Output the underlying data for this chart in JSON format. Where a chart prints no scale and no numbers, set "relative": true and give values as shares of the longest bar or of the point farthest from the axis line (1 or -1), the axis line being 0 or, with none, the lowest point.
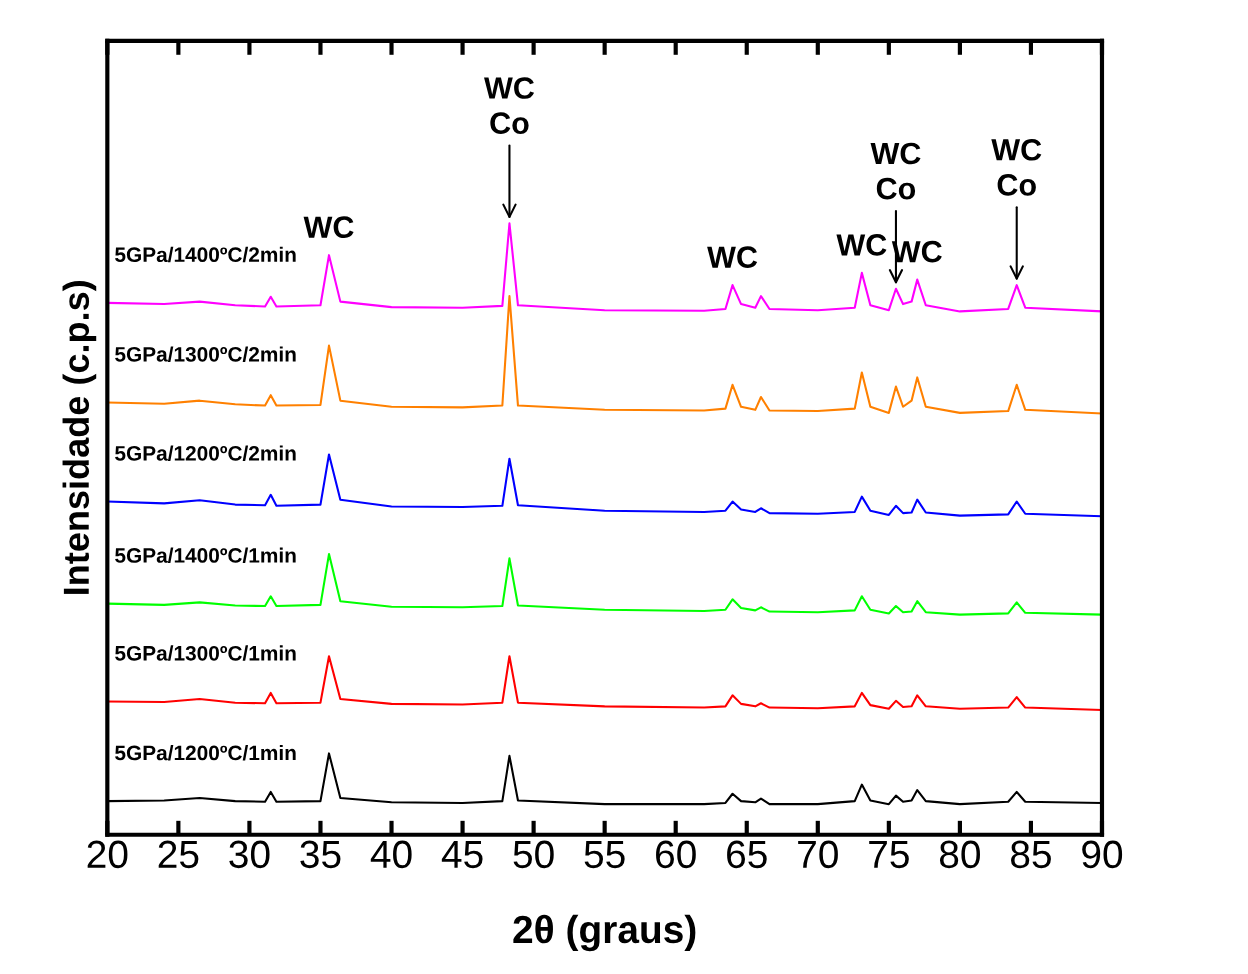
{
  "chart_data": {
    "type": "line",
    "xlabel": "2θ (graus)",
    "ylabel": "Intensidade (c.p.s)",
    "relative": true,
    "legend": false,
    "grid": false,
    "marker": "none",
    "line_style": "solid",
    "xlim": [
      20,
      90
    ],
    "xticks": [
      20,
      25,
      30,
      35,
      40,
      45,
      50,
      55,
      60,
      65,
      70,
      75,
      80,
      85,
      90
    ],
    "x": [
      20,
      24,
      26.5,
      29,
      31.1,
      31.5,
      31.9,
      35,
      35.6,
      36.4,
      40,
      45,
      47.8,
      48.3,
      48.9,
      55,
      62,
      63.5,
      64,
      64.6,
      65.6,
      66,
      66.6,
      70,
      72.6,
      73.1,
      73.7,
      75,
      75.5,
      76,
      76.6,
      77,
      77.6,
      80,
      83.4,
      84,
      84.6,
      90
    ],
    "series": [
      {
        "name": "5GPa/1200ºC/1min",
        "color": "#000000",
        "values": [
          0.055,
          0.056,
          0.06,
          0.055,
          0.054,
          0.07,
          0.054,
          0.055,
          0.133,
          0.06,
          0.053,
          0.052,
          0.055,
          0.129,
          0.056,
          0.05,
          0.05,
          0.052,
          0.067,
          0.055,
          0.053,
          0.059,
          0.05,
          0.05,
          0.055,
          0.082,
          0.056,
          0.05,
          0.064,
          0.054,
          0.056,
          0.073,
          0.055,
          0.05,
          0.054,
          0.07,
          0.054,
          0.052
        ]
      },
      {
        "name": "5GPa/1300ºC/1min",
        "color": "#ff0000",
        "values": [
          0.218,
          0.217,
          0.222,
          0.216,
          0.215,
          0.232,
          0.215,
          0.216,
          0.292,
          0.222,
          0.214,
          0.213,
          0.216,
          0.292,
          0.216,
          0.21,
          0.208,
          0.21,
          0.228,
          0.214,
          0.21,
          0.215,
          0.208,
          0.207,
          0.21,
          0.232,
          0.212,
          0.206,
          0.219,
          0.209,
          0.21,
          0.228,
          0.21,
          0.206,
          0.208,
          0.225,
          0.208,
          0.204
        ]
      },
      {
        "name": "5GPa/1400ºC/1min",
        "color": "#00ff00",
        "values": [
          0.378,
          0.376,
          0.38,
          0.375,
          0.374,
          0.39,
          0.374,
          0.376,
          0.459,
          0.382,
          0.373,
          0.372,
          0.374,
          0.452,
          0.375,
          0.368,
          0.366,
          0.368,
          0.385,
          0.371,
          0.367,
          0.372,
          0.365,
          0.364,
          0.367,
          0.39,
          0.368,
          0.362,
          0.374,
          0.364,
          0.365,
          0.382,
          0.364,
          0.36,
          0.362,
          0.38,
          0.363,
          0.36
        ]
      },
      {
        "name": "5GPa/1200ºC/2min",
        "color": "#0000ff",
        "values": [
          0.545,
          0.542,
          0.547,
          0.54,
          0.539,
          0.556,
          0.538,
          0.54,
          0.622,
          0.548,
          0.537,
          0.536,
          0.538,
          0.615,
          0.539,
          0.53,
          0.528,
          0.53,
          0.545,
          0.532,
          0.528,
          0.534,
          0.526,
          0.525,
          0.528,
          0.553,
          0.53,
          0.523,
          0.538,
          0.526,
          0.527,
          0.548,
          0.527,
          0.522,
          0.524,
          0.545,
          0.525,
          0.521
        ]
      },
      {
        "name": "5GPa/1300ºC/2min",
        "color": "#ff8000",
        "values": [
          0.707,
          0.705,
          0.71,
          0.704,
          0.702,
          0.719,
          0.702,
          0.703,
          0.8,
          0.71,
          0.7,
          0.699,
          0.702,
          0.881,
          0.702,
          0.695,
          0.694,
          0.697,
          0.736,
          0.7,
          0.695,
          0.716,
          0.694,
          0.693,
          0.697,
          0.756,
          0.7,
          0.69,
          0.733,
          0.7,
          0.71,
          0.748,
          0.7,
          0.69,
          0.693,
          0.736,
          0.695,
          0.689
        ]
      },
      {
        "name": "5GPa/1400ºC/2min",
        "color": "#ff00ff",
        "values": [
          0.87,
          0.868,
          0.872,
          0.866,
          0.864,
          0.88,
          0.864,
          0.866,
          0.948,
          0.872,
          0.863,
          0.862,
          0.865,
          1.0,
          0.866,
          0.858,
          0.857,
          0.86,
          0.899,
          0.868,
          0.862,
          0.881,
          0.86,
          0.858,
          0.862,
          0.919,
          0.866,
          0.858,
          0.893,
          0.868,
          0.872,
          0.908,
          0.866,
          0.856,
          0.86,
          0.899,
          0.862,
          0.856
        ]
      }
    ],
    "annotations": [
      {
        "text": "WC",
        "x": 35.6,
        "y": 0.948
      },
      {
        "text": "WC\nCo",
        "x": 48.3,
        "y": 1.0
      },
      {
        "text": "WC",
        "x": 64,
        "y": 0.899
      },
      {
        "text": "WC\nCo",
        "x": 75.5,
        "y": 0.893
      },
      {
        "text": "WC",
        "x": 73.1,
        "y": 0.919
      },
      {
        "text": "WC",
        "x": 77,
        "y": 0.908
      },
      {
        "text": "WC\nCo",
        "x": 84,
        "y": 0.899
      }
    ]
  }
}
